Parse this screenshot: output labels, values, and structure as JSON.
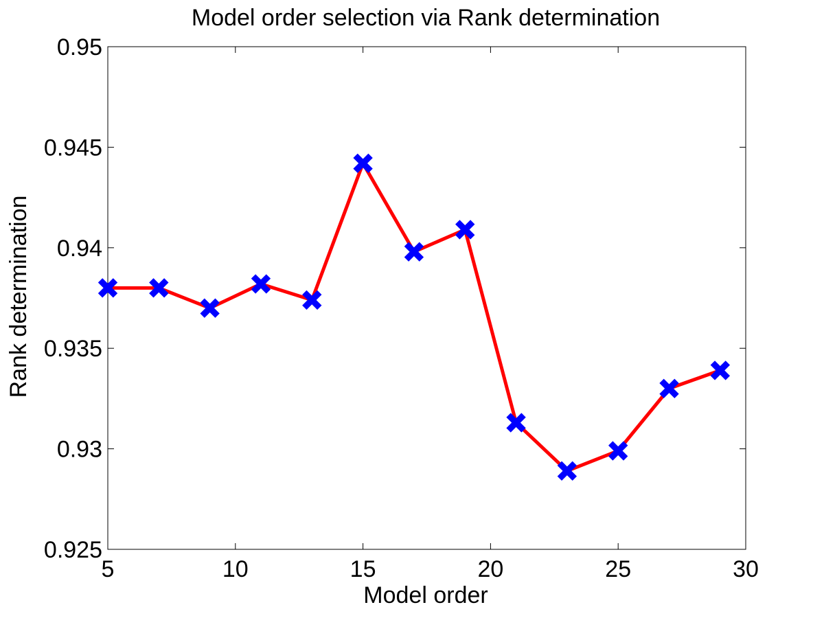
{
  "chart_data": {
    "type": "line",
    "title": "Model order selection via Rank determination",
    "xlabel": "Model order",
    "ylabel": "Rank determination",
    "xlim": [
      5,
      30
    ],
    "ylim": [
      0.925,
      0.95
    ],
    "xticks": [
      5,
      10,
      15,
      20,
      25,
      30
    ],
    "yticks": [
      0.925,
      0.93,
      0.935,
      0.94,
      0.945,
      0.95
    ],
    "xtick_labels": [
      "5",
      "10",
      "15",
      "20",
      "25",
      "30"
    ],
    "ytick_labels": [
      "0.925",
      "0.93",
      "0.935",
      "0.94",
      "0.945",
      "0.95"
    ],
    "grid": false,
    "series": [
      {
        "x": [
          5,
          7,
          9,
          11,
          13,
          15,
          17,
          19,
          21,
          23,
          25,
          27,
          29
        ],
        "y": [
          0.938,
          0.938,
          0.937,
          0.9382,
          0.9374,
          0.9442,
          0.9398,
          0.9409,
          0.9313,
          0.9289,
          0.9299,
          0.933,
          0.9339
        ],
        "line_color": "#ff0000",
        "marker": "x",
        "marker_color": "#0000ff"
      }
    ]
  }
}
